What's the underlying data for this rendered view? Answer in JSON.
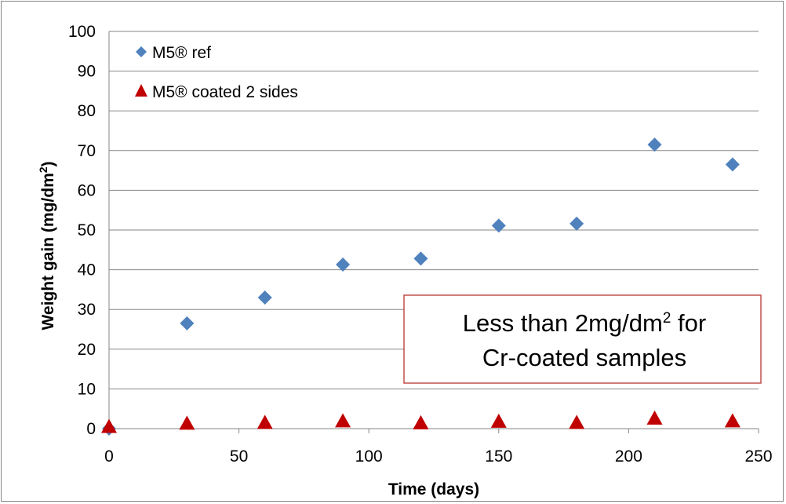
{
  "chart_data": {
    "type": "scatter",
    "title": "",
    "xlabel": "Time (days)",
    "ylabel_main": "Weight gain (mg/dm",
    "ylabel_sup": "2",
    "ylabel_tail": ")",
    "xlim": [
      0,
      250
    ],
    "ylim": [
      0,
      100
    ],
    "xticks": [
      "0",
      "50",
      "100",
      "150",
      "200",
      "250"
    ],
    "yticks": [
      "0",
      "10",
      "20",
      "30",
      "40",
      "50",
      "60",
      "70",
      "80",
      "90",
      "100"
    ],
    "grid": "horizontal",
    "legend_position": "top-left",
    "series": [
      {
        "name": "M5® ref",
        "marker": "diamond",
        "color": "#4F81BD",
        "x": [
          0,
          30,
          60,
          90,
          120,
          150,
          180,
          210,
          240
        ],
        "y": [
          0,
          26.5,
          33,
          41.3,
          42.8,
          51.1,
          51.6,
          71.5,
          66.5
        ]
      },
      {
        "name": "M5® coated 2 sides",
        "marker": "triangle",
        "color": "#C00000",
        "x": [
          0,
          30,
          60,
          90,
          120,
          150,
          180,
          210,
          240
        ],
        "y": [
          0.3,
          1.1,
          1.3,
          1.7,
          1.2,
          1.6,
          1.3,
          2.4,
          1.7
        ]
      }
    ],
    "annotation": {
      "line1_main": "Less than 2mg/dm",
      "line1_sup": "2",
      "line1_tail": " for",
      "line2": "Cr-coated samples",
      "border_color": "#C0504D"
    }
  }
}
